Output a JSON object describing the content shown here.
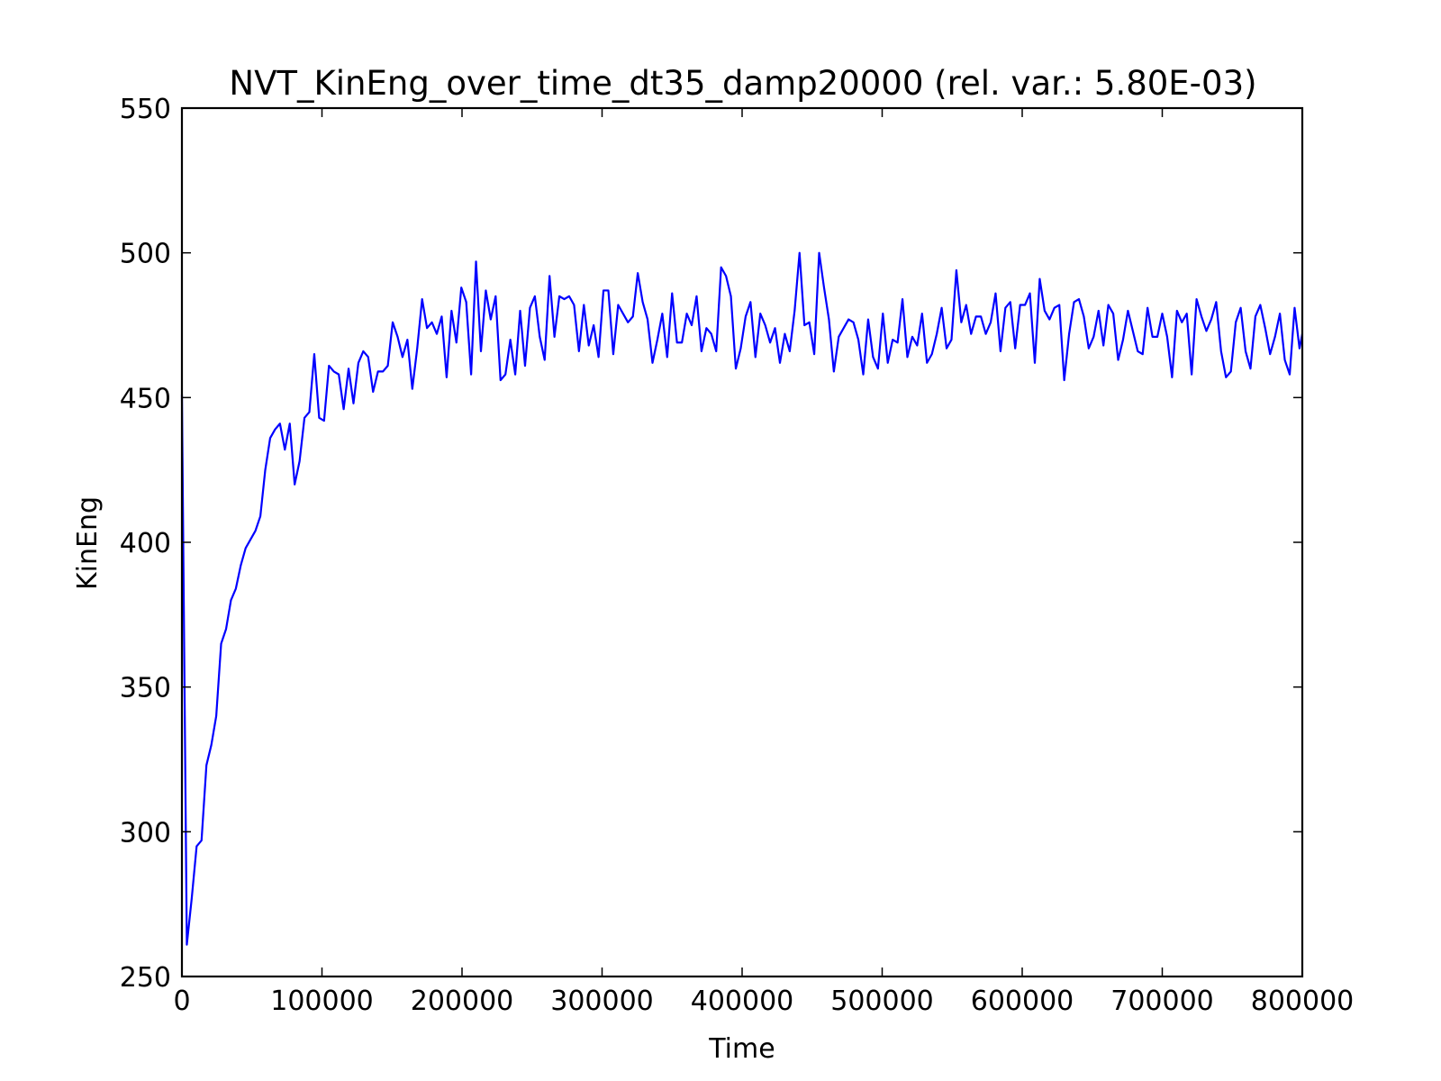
{
  "chart_data": {
    "type": "line",
    "title": "NVT_KinEng_over_time_dt35_damp20000 (rel. var.: 5.80E-03)",
    "xlabel": "Time",
    "ylabel": "KinEng",
    "xlim": [
      0,
      800000
    ],
    "ylim": [
      250,
      550
    ],
    "xticks": [
      0,
      100000,
      200000,
      300000,
      400000,
      500000,
      600000,
      700000,
      800000
    ],
    "xtick_labels": [
      "0",
      "100000",
      "200000",
      "300000",
      "400000",
      "500000",
      "600000",
      "700000",
      "800000"
    ],
    "yticks": [
      250,
      300,
      350,
      400,
      450,
      500,
      550
    ],
    "ytick_labels": [
      "250",
      "300",
      "350",
      "400",
      "450",
      "500",
      "550"
    ],
    "grid": false,
    "legend": "none",
    "series": [
      {
        "color": "#0000ff",
        "x": [
          0,
          3500,
          7000,
          10500,
          14000,
          17500,
          21000,
          24500,
          28000,
          31500,
          35000,
          38500,
          42000,
          45500,
          49000,
          52500,
          56000,
          59500,
          63000,
          66500,
          70000,
          73500,
          77000,
          80500,
          84000,
          87500,
          91000,
          94500,
          98000,
          101500,
          105000,
          108500,
          112000,
          115500,
          119000,
          122500,
          126000,
          129500,
          133000,
          136500,
          140000,
          143500,
          147000,
          150500,
          154000,
          157500,
          161000,
          164500,
          168000,
          171500,
          175000,
          178500,
          182000,
          185500,
          189000,
          192500,
          196000,
          199500,
          203000,
          206500,
          210000,
          213500,
          217000,
          220500,
          224000,
          227500,
          231000,
          234500,
          238000,
          241500,
          245000,
          248500,
          252000,
          255500,
          259000,
          262500,
          266000,
          269500,
          273000,
          276500,
          280000,
          283500,
          287000,
          290500,
          294000,
          297500,
          301000,
          304500,
          308000,
          311500,
          315000,
          318500,
          322000,
          325500,
          329000,
          332500,
          336000,
          339500,
          343000,
          346500,
          350000,
          353500,
          357000,
          360500,
          364000,
          367500,
          371000,
          374500,
          378000,
          381500,
          385000,
          388500,
          392000,
          395500,
          399000,
          402500,
          406000,
          409500,
          413000,
          416500,
          420000,
          423500,
          427000,
          430500,
          434000,
          437500,
          441000,
          444500,
          448000,
          451500,
          455000,
          458500,
          462000,
          465500,
          469000,
          472500,
          476000,
          479500,
          483000,
          486500,
          490000,
          493500,
          497000,
          500500,
          504000,
          507500,
          511000,
          514500,
          518000,
          521500,
          525000,
          528500,
          532000,
          535500,
          539000,
          542500,
          546000,
          549500,
          553000,
          556500,
          560000,
          563500,
          567000,
          570500,
          574000,
          577500,
          581000,
          584500,
          588000,
          591500,
          595000,
          598500,
          602000,
          605500,
          609000,
          612500,
          616000,
          619500,
          623000,
          626500,
          630000,
          633500,
          637000,
          640500,
          644000,
          647500,
          651000,
          654500,
          658000,
          661500,
          665000,
          668500,
          672000,
          675500,
          679000,
          682500,
          686000,
          689500,
          693000,
          696500,
          700000,
          703500,
          707000,
          710500,
          714000,
          717500,
          721000,
          724500,
          728000,
          731500,
          735000,
          738500,
          742000,
          745500,
          749000,
          752500,
          756000,
          759500,
          763000,
          766500,
          770000,
          773500,
          777000,
          780500,
          784000,
          787500,
          791000,
          794500,
          798000,
          800000
        ],
        "y": [
          451,
          261,
          277,
          295,
          297,
          323,
          330,
          340,
          365,
          370,
          380,
          384,
          392,
          398,
          401,
          404,
          409,
          425,
          436,
          439,
          441,
          432,
          441,
          420,
          428,
          443,
          445,
          465,
          443,
          442,
          461,
          459,
          458,
          446,
          460,
          448,
          462,
          466,
          464,
          452,
          459,
          459,
          461,
          476,
          471,
          464,
          470,
          453,
          467,
          484,
          474,
          476,
          472,
          478,
          457,
          480,
          469,
          488,
          483,
          458,
          497,
          466,
          487,
          477,
          485,
          456,
          458,
          470,
          458,
          480,
          461,
          481,
          485,
          471,
          463,
          492,
          471,
          485,
          484,
          485,
          482,
          466,
          482,
          468,
          475,
          464,
          487,
          487,
          465,
          482,
          479,
          476,
          478,
          493,
          483,
          477,
          462,
          470,
          479,
          464,
          486,
          469,
          469,
          479,
          475,
          485,
          466,
          474,
          472,
          466,
          495,
          492,
          485,
          460,
          467,
          478,
          483,
          464,
          479,
          475,
          469,
          474,
          462,
          472,
          466,
          480,
          500,
          475,
          476,
          465,
          500,
          488,
          477,
          459,
          471,
          474,
          477,
          476,
          470,
          458,
          477,
          464,
          460,
          479,
          462,
          470,
          469,
          484,
          464,
          471,
          468,
          479,
          462,
          465,
          472,
          481,
          467,
          470,
          494,
          476,
          482,
          472,
          478,
          478,
          472,
          476,
          486,
          466,
          481,
          483,
          467,
          482,
          482,
          486,
          462,
          491,
          480,
          477,
          481,
          482,
          456,
          472,
          483,
          484,
          478,
          467,
          471,
          480,
          468,
          482,
          479,
          463,
          470,
          480,
          473,
          466,
          465,
          481,
          471,
          471,
          479,
          471,
          457,
          480,
          476,
          479,
          458,
          484,
          478,
          473,
          477,
          483,
          466,
          457,
          459,
          476,
          481,
          466,
          460,
          478,
          482,
          474,
          465,
          471,
          479,
          463,
          458,
          481,
          467,
          472
        ]
      }
    ]
  }
}
